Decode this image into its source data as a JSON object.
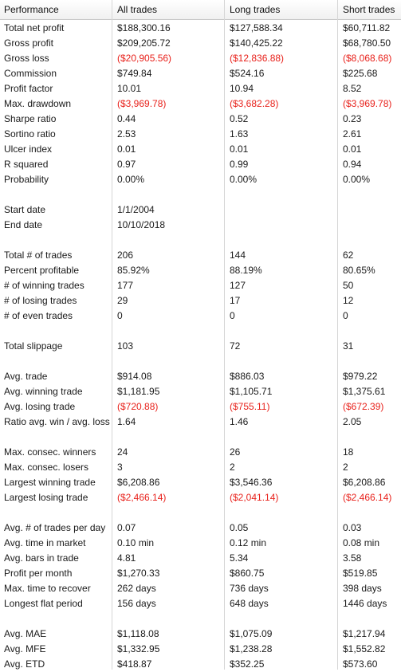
{
  "headers": [
    "Performance",
    "All trades",
    "Long trades",
    "Short trades"
  ],
  "rows": [
    {
      "label": "Total net profit",
      "all": "$188,300.16",
      "long": "$127,588.34",
      "short": "$60,711.82"
    },
    {
      "label": "Gross profit",
      "all": "$209,205.72",
      "long": "$140,425.22",
      "short": "$68,780.50"
    },
    {
      "label": "Gross loss",
      "all": "($20,905.56)",
      "long": "($12,836.88)",
      "short": "($8,068.68)",
      "negative": true
    },
    {
      "label": "Commission",
      "all": "$749.84",
      "long": "$524.16",
      "short": "$225.68"
    },
    {
      "label": "Profit factor",
      "all": "10.01",
      "long": "10.94",
      "short": "8.52"
    },
    {
      "label": "Max. drawdown",
      "all": "($3,969.78)",
      "long": "($3,682.28)",
      "short": "($3,969.78)",
      "negative": true
    },
    {
      "label": "Sharpe ratio",
      "all": "0.44",
      "long": "0.52",
      "short": "0.23"
    },
    {
      "label": "Sortino ratio",
      "all": "2.53",
      "long": "1.63",
      "short": "2.61"
    },
    {
      "label": "Ulcer index",
      "all": "0.01",
      "long": "0.01",
      "short": "0.01"
    },
    {
      "label": "R squared",
      "all": "0.97",
      "long": "0.99",
      "short": "0.94"
    },
    {
      "label": "Probability",
      "all": "0.00%",
      "long": "0.00%",
      "short": "0.00%"
    },
    {
      "spacer": true
    },
    {
      "label": "Start date",
      "all": "1/1/2004",
      "long": "",
      "short": ""
    },
    {
      "label": "End date",
      "all": "10/10/2018",
      "long": "",
      "short": ""
    },
    {
      "spacer": true
    },
    {
      "label": "Total # of trades",
      "all": "206",
      "long": "144",
      "short": "62"
    },
    {
      "label": "Percent profitable",
      "all": "85.92%",
      "long": "88.19%",
      "short": "80.65%"
    },
    {
      "label": "# of winning trades",
      "all": "177",
      "long": "127",
      "short": "50"
    },
    {
      "label": "# of losing trades",
      "all": "29",
      "long": "17",
      "short": "12"
    },
    {
      "label": "# of even trades",
      "all": "0",
      "long": "0",
      "short": "0"
    },
    {
      "spacer": true
    },
    {
      "label": "Total slippage",
      "all": "103",
      "long": "72",
      "short": "31"
    },
    {
      "spacer": true
    },
    {
      "label": "Avg. trade",
      "all": "$914.08",
      "long": "$886.03",
      "short": "$979.22"
    },
    {
      "label": "Avg. winning trade",
      "all": "$1,181.95",
      "long": "$1,105.71",
      "short": "$1,375.61"
    },
    {
      "label": "Avg. losing trade",
      "all": "($720.88)",
      "long": "($755.11)",
      "short": "($672.39)",
      "negative": true
    },
    {
      "label": "Ratio avg. win / avg. loss",
      "all": "1.64",
      "long": "1.46",
      "short": "2.05"
    },
    {
      "spacer": true
    },
    {
      "label": "Max. consec. winners",
      "all": "24",
      "long": "26",
      "short": "18"
    },
    {
      "label": "Max. consec. losers",
      "all": "3",
      "long": "2",
      "short": "2"
    },
    {
      "label": "Largest winning trade",
      "all": "$6,208.86",
      "long": "$3,546.36",
      "short": "$6,208.86"
    },
    {
      "label": "Largest losing trade",
      "all": "($2,466.14)",
      "long": "($2,041.14)",
      "short": "($2,466.14)",
      "negative": true
    },
    {
      "spacer": true
    },
    {
      "label": "Avg. # of trades per day",
      "all": "0.07",
      "long": "0.05",
      "short": "0.03"
    },
    {
      "label": "Avg. time in market",
      "all": "0.10 min",
      "long": "0.12 min",
      "short": "0.08 min"
    },
    {
      "label": "Avg. bars in trade",
      "all": "4.81",
      "long": "5.34",
      "short": "3.58"
    },
    {
      "label": "Profit per month",
      "all": "$1,270.33",
      "long": "$860.75",
      "short": "$519.85"
    },
    {
      "label": "Max. time to recover",
      "all": "262 days",
      "long": "736 days",
      "short": "398 days"
    },
    {
      "label": "Longest flat period",
      "all": "156 days",
      "long": "648 days",
      "short": "1446 days"
    },
    {
      "spacer": true
    },
    {
      "label": "Avg. MAE",
      "all": "$1,118.08",
      "long": "$1,075.09",
      "short": "$1,217.94"
    },
    {
      "label": "Avg. MFE",
      "all": "$1,332.95",
      "long": "$1,238.28",
      "short": "$1,552.82"
    },
    {
      "label": "Avg. ETD",
      "all": "$418.87",
      "long": "$352.25",
      "short": "$573.60"
    }
  ],
  "colors": {
    "negative": "#e8211b",
    "text": "#1a1a1a",
    "grid": "#d6d6d6"
  }
}
